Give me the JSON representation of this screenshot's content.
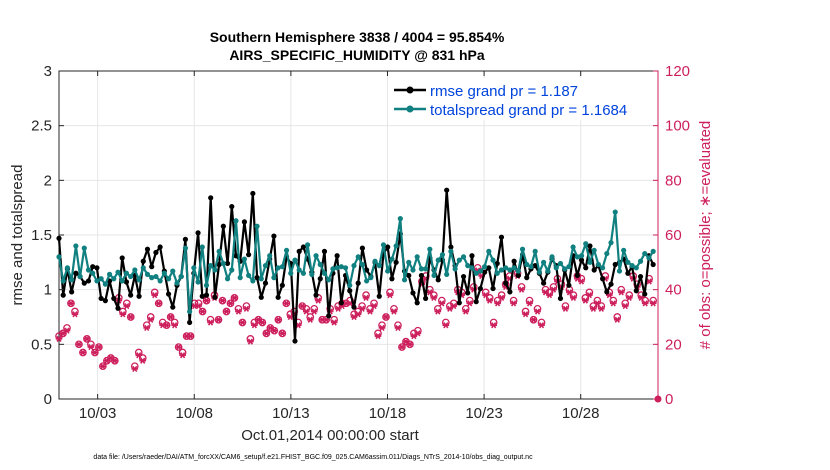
{
  "chart_data": {
    "type": "line",
    "title_line1": "Southern Hemisphere 3838 / 4004 = 95.854%",
    "title_line2": "AIRS_SPECIFIC_HUMIDITY @ 831 hPa",
    "xlabel": "Oct.01,2014 00:00:00 start",
    "ylabel_left": "rmse and totalspread",
    "ylabel_right": "# of obs: o=possible; ∗=evaluated",
    "xlim": [
      1.0,
      32.0
    ],
    "ylim_left": [
      0,
      3
    ],
    "ylim_right": [
      0,
      120
    ],
    "x_ticks": [
      3,
      8,
      13,
      18,
      23,
      28
    ],
    "x_tick_labels": [
      "10/03",
      "10/08",
      "10/13",
      "10/18",
      "10/23",
      "10/28"
    ],
    "y_left_ticks": [
      0,
      0.5,
      1,
      1.5,
      2,
      2.5,
      3
    ],
    "y_left_tick_labels": [
      "0",
      "0.5",
      "1",
      "1.5",
      "2",
      "2.5",
      "3"
    ],
    "y_right_ticks": [
      0,
      20,
      40,
      60,
      80,
      100,
      120
    ],
    "y_right_tick_labels": [
      "0",
      "20",
      "40",
      "60",
      "80",
      "100",
      "120"
    ],
    "grid": true,
    "legend": {
      "placement": "top-right",
      "entries": [
        "rmse grand pr = 1.187",
        "totalspread grand pr = 1.1684"
      ]
    },
    "series": [
      {
        "name": "rmse",
        "color": "#000000",
        "values": [
          1.47,
          0.95,
          1.19,
          0.98,
          1.15,
          1.12,
          1.06,
          1.08,
          1.21,
          1.2,
          0.92,
          0.9,
          1.08,
          0.92,
          0.83,
          1.29,
          1.07,
          0.95,
          1.13,
          0.94,
          1.26,
          1.37,
          1.21,
          1.34,
          1.39,
          1.17,
          0.96,
          0.84,
          1.04,
          1.12,
          1.46,
          0.7,
          1.15,
          1.52,
          0.94,
          0.95,
          1.84,
          0.93,
          1.23,
          1.58,
          1.24,
          1.76,
          1.31,
          1.26,
          1.62,
          1.32,
          1.88,
          1.11,
          0.93,
          1.06,
          1.28,
          1.49,
          0.93,
          1.04,
          1.3,
          1.24,
          0.53,
          1.35,
          1.39,
          1.28,
          1.16,
          0.95,
          1.1,
          1.35,
          0.76,
          1.15,
          1.31,
          0.88,
          1.13,
          0.99,
          0.84,
          1.06,
          1.38,
          1.18,
          1.12,
          1.25,
          0.94,
          1.33,
          1.39,
          1.1,
          1.25,
          1.51,
          1.17,
          1.13,
          0.97,
          0.88,
          1.13,
          0.92,
          1.29,
          1.18,
          1.09,
          1.27,
          1.91,
          1.39,
          1.22,
          0.88,
          1.12,
          0.97,
          1.31,
          0.89,
          1.01,
          1.16,
          1.2,
          1.01,
          1.24,
          1.48,
          1.06,
          0.98,
          1.26,
          1.13,
          1.32,
          1.11,
          1.19,
          1.22,
          1.15,
          1.06,
          1.16,
          1.28,
          1.22,
          0.92,
          1.18,
          1.04,
          1.31,
          1.13,
          1.27,
          1.2,
          1.4,
          1.18,
          1.22,
          1.1,
          0.98,
          1.05,
          1.23,
          1.25,
          1.28,
          1.15,
          1.21,
          0.99,
          1.12,
          0.96,
          1.31,
          1.23
        ],
        "marker": "filled circle"
      },
      {
        "name": "totalspread",
        "color": "#118080",
        "values": [
          1.3,
          1.08,
          1.2,
          1.09,
          1.4,
          1.12,
          1.38,
          1.18,
          1.15,
          1.08,
          1.1,
          1.05,
          1.14,
          1.1,
          1.16,
          1.08,
          1.15,
          1.12,
          1.18,
          1.09,
          1.2,
          1.14,
          1.11,
          1.12,
          1.08,
          1.15,
          1.1,
          1.17,
          1.06,
          1.12,
          1.38,
          0.8,
          1.2,
          1.07,
          1.39,
          1.04,
          1.22,
          1.18,
          1.35,
          1.24,
          1.1,
          1.18,
          1.63,
          1.11,
          1.28,
          1.13,
          1.08,
          1.58,
          1.1,
          1.22,
          1.31,
          1.11,
          1.2,
          1.21,
          1.36,
          1.15,
          1.27,
          1.18,
          1.15,
          1.41,
          1.14,
          1.31,
          1.23,
          1.15,
          1.09,
          1.19,
          1.2,
          1.21,
          1.2,
          1.04,
          1.22,
          1.3,
          1.23,
          1.08,
          1.11,
          1.26,
          1.22,
          1.41,
          1.17,
          1.28,
          1.4,
          1.65,
          1.09,
          1.25,
          1.18,
          1.3,
          1.19,
          1.19,
          1.37,
          1.13,
          1.27,
          1.32,
          1.14,
          1.35,
          1.19,
          1.27,
          1.3,
          1.22,
          1.2,
          1.15,
          1.17,
          1.21,
          1.35,
          1.27,
          1.15,
          1.18,
          1.2,
          1.18,
          1.2,
          1.17,
          1.37,
          1.23,
          1.21,
          1.35,
          1.16,
          1.25,
          1.17,
          1.3,
          1.2,
          1.24,
          1.19,
          1.21,
          1.39,
          1.3,
          1.31,
          1.42,
          1.25,
          1.36,
          1.23,
          1.2,
          1.33,
          1.43,
          1.71,
          1.17,
          1.36,
          1.25,
          1.22,
          1.2,
          1.26,
          1.33,
          1.29,
          1.35
        ],
        "marker": "filled circle"
      },
      {
        "name": "obs possible",
        "color": "#cc1f5c",
        "axis": "right",
        "values": [
          23,
          24,
          26,
          35,
          32,
          20,
          17,
          22,
          20,
          17,
          19,
          12,
          14,
          15,
          14,
          37,
          32,
          35,
          30,
          12,
          17,
          15,
          27,
          30,
          39,
          35,
          28,
          27,
          30,
          28,
          19,
          17,
          23,
          23,
          35,
          35,
          32,
          36,
          29,
          38,
          29,
          36,
          32,
          35,
          37,
          33,
          28,
          34,
          22,
          28,
          29,
          28,
          24,
          26,
          25,
          29,
          24,
          35,
          31,
          32,
          28,
          34,
          33,
          30,
          33,
          37,
          29,
          29,
          33,
          29,
          34,
          35,
          35,
          36,
          31,
          32,
          34,
          38,
          33,
          35,
          24,
          27,
          30,
          39,
          33,
          27,
          19,
          21,
          20,
          24,
          25,
          43,
          45,
          40,
          38,
          33,
          36,
          28,
          34,
          35,
          40,
          39,
          33,
          36,
          41,
          48,
          46,
          39,
          37,
          28,
          36,
          38,
          42,
          45,
          36,
          46,
          41,
          32,
          36,
          29,
          33,
          28,
          40,
          39,
          41,
          44,
          42,
          34,
          40,
          38,
          45,
          44,
          37,
          39,
          34,
          36,
          34,
          45,
          39,
          36,
          30,
          40,
          35,
          38,
          45,
          42,
          38,
          36,
          44,
          36
        ]
      },
      {
        "name": "obs evaluated",
        "color": "#cc1f5c",
        "axis": "right",
        "values": [
          22,
          24,
          25,
          35,
          31,
          20,
          17,
          22,
          19,
          17,
          19,
          12,
          14,
          15,
          14,
          36,
          31,
          34,
          30,
          11,
          16,
          14,
          26,
          29,
          38,
          35,
          27,
          27,
          30,
          27,
          19,
          16,
          23,
          23,
          34,
          34,
          32,
          36,
          28,
          37,
          29,
          36,
          32,
          35,
          37,
          32,
          28,
          33,
          21,
          27,
          29,
          28,
          24,
          26,
          25,
          29,
          24,
          35,
          30,
          31,
          27,
          34,
          32,
          29,
          32,
          36,
          29,
          29,
          32,
          28,
          33,
          34,
          35,
          35,
          30,
          31,
          33,
          37,
          32,
          34,
          23,
          26,
          30,
          38,
          32,
          26,
          19,
          21,
          20,
          23,
          24,
          42,
          44,
          39,
          37,
          32,
          35,
          27,
          33,
          34,
          39,
          38,
          32,
          35,
          40,
          47,
          45,
          38,
          36,
          27,
          35,
          37,
          41,
          44,
          35,
          45,
          40,
          31,
          35,
          29,
          32,
          27,
          39,
          38,
          40,
          43,
          41,
          33,
          39,
          37,
          44,
          43,
          36,
          38,
          33,
          35,
          33,
          44,
          38,
          35,
          29,
          39,
          34,
          37,
          44,
          41,
          37,
          35,
          43,
          35
        ]
      }
    ]
  },
  "footer": "data file: /Users/raeder/DAI/ATM_forcXX/CAM6_setup/f.e21.FHIST_BGC.f09_025.CAM6assim.011/Diags_NTrS_2014-10/obs_diag_output.nc"
}
